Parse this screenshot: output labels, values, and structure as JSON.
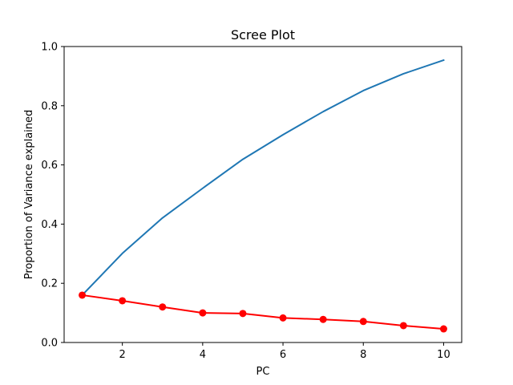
{
  "chart_data": {
    "type": "line",
    "title": "Scree Plot",
    "xlabel": "PC",
    "ylabel": "Proportion of Variance explained",
    "xlim": [
      0.55,
      10.45
    ],
    "ylim": [
      0,
      1.0
    ],
    "x": [
      1,
      2,
      3,
      4,
      5,
      6,
      7,
      8,
      9,
      10
    ],
    "xticks": [
      2,
      4,
      6,
      8,
      10
    ],
    "yticks": [
      0.0,
      0.2,
      0.4,
      0.6,
      0.8,
      1.0
    ],
    "xtick_labels": [
      "2",
      "4",
      "6",
      "8",
      "10"
    ],
    "ytick_labels": [
      "0.0",
      "0.2",
      "0.4",
      "0.6",
      "0.8",
      "1.0"
    ],
    "grid": false,
    "series": [
      {
        "color": "#1f77b4",
        "marker": "none",
        "values": [
          0.16,
          0.301,
          0.421,
          0.521,
          0.619,
          0.702,
          0.78,
          0.851,
          0.908,
          0.954
        ]
      },
      {
        "color": "#ff0000",
        "marker": "circle",
        "values": [
          0.16,
          0.141,
          0.12,
          0.1,
          0.098,
          0.083,
          0.078,
          0.071,
          0.057,
          0.046
        ]
      }
    ]
  }
}
